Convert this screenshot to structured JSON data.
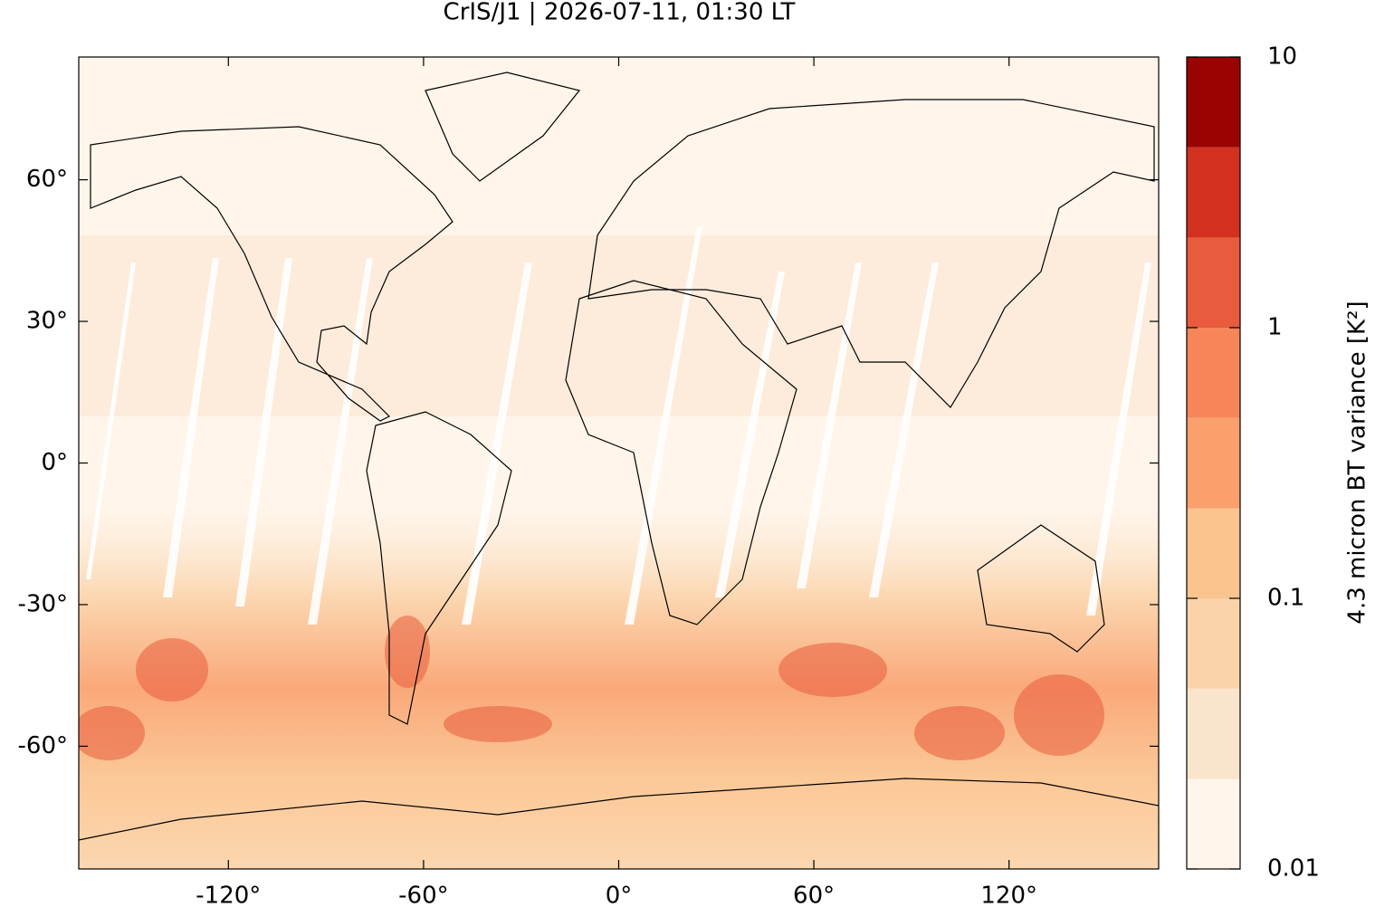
{
  "chart_data": {
    "type": "map",
    "title": "CrIS/J1 | 2026-07-11, 01:30 LT",
    "xlim": [
      -166,
      166
    ],
    "ylim": [
      -86,
      86
    ],
    "xticks": [
      {
        "value": -120,
        "label": "-120°"
      },
      {
        "value": -60,
        "label": "-60°"
      },
      {
        "value": 0,
        "label": "0°"
      },
      {
        "value": 60,
        "label": "60°"
      },
      {
        "value": 120,
        "label": "120°"
      }
    ],
    "yticks": [
      {
        "value": -60,
        "label": "-60°"
      },
      {
        "value": -30,
        "label": "-30°"
      },
      {
        "value": 0,
        "label": "0°"
      },
      {
        "value": 30,
        "label": "30°"
      },
      {
        "value": 60,
        "label": "60°"
      }
    ],
    "colorbar": {
      "label": "4.3 micron BT variance [K²]",
      "scale": "log",
      "lim": [
        0.01,
        10
      ],
      "ticks": [
        0.01,
        0.1,
        1,
        10
      ],
      "levels": [
        0.01,
        0.0215,
        0.0464,
        0.1,
        0.215,
        0.464,
        1,
        2.15,
        4.64,
        10
      ],
      "colors": [
        "#fff5ea",
        "#fbe4cc",
        "#fbd3a9",
        "#fbc38e",
        "#f9a06d",
        "#f68659",
        "#e85b3d",
        "#d3311f",
        "#990402"
      ]
    }
  }
}
